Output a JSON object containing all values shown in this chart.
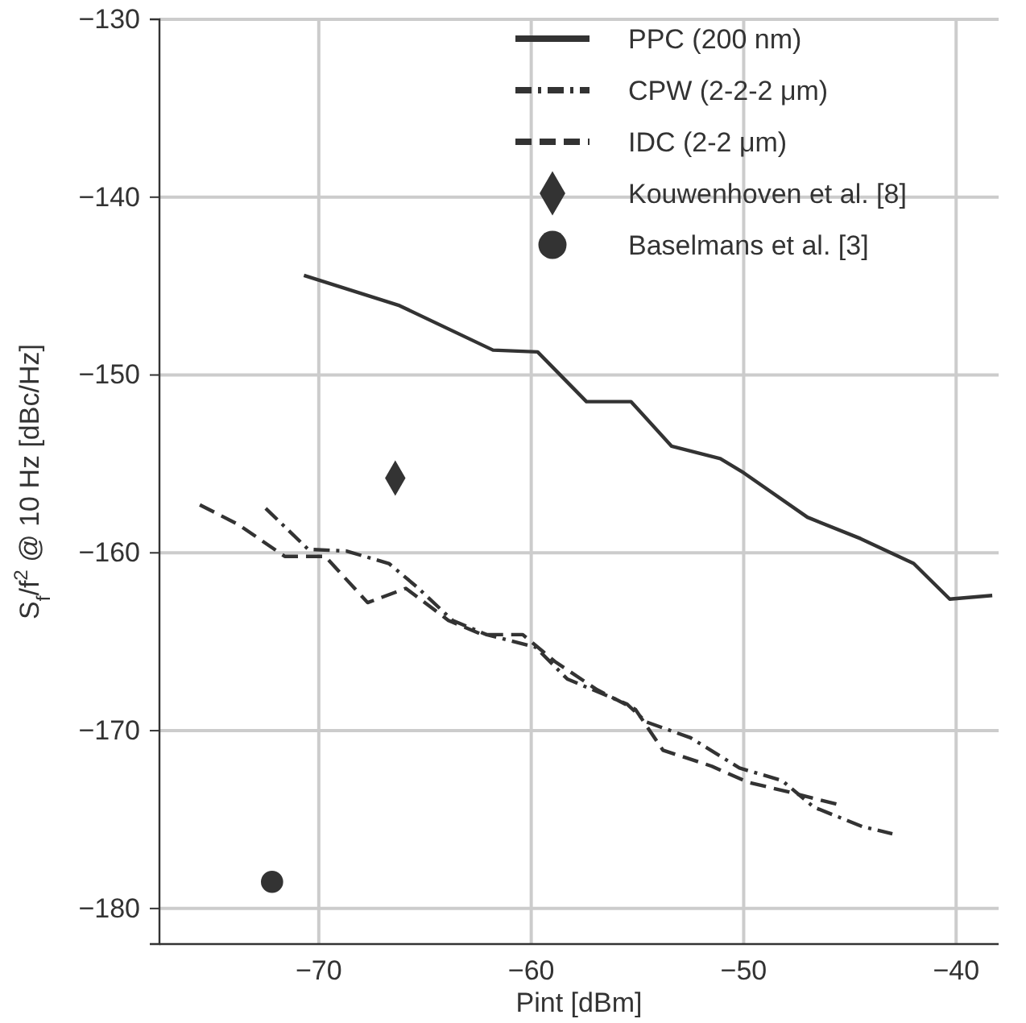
{
  "chart_data": {
    "type": "line",
    "xlabel": "Pint [dBm]",
    "ylabel": "S$_{f}$/f$^{2}$ @ 10 Hz [dBc/Hz]",
    "xlim": [
      -77.5,
      -38
    ],
    "ylim": [
      -182,
      -130
    ],
    "xticks": [
      -70,
      -60,
      -50,
      -40
    ],
    "yticks": [
      -180,
      -170,
      -160,
      -150,
      -140,
      -130
    ],
    "grid": true,
    "legend": "top right",
    "series": [
      {
        "name": "PPC (200 nm)",
        "color": "#333333",
        "line_style": "solid",
        "x": [
          -70.7,
          -66.2,
          -61.8,
          -59.7,
          -57.4,
          -55.3,
          -53.4,
          -51.1,
          -50,
          -47,
          -44.5,
          -42,
          -40.3,
          -38.3
        ],
        "values": [
          -144.4,
          -146.1,
          -148.6,
          -148.7,
          -151.5,
          -151.5,
          -154.0,
          -154.7,
          -155.5,
          -158,
          -159.2,
          -160.6,
          -162.6,
          -162.4
        ]
      },
      {
        "name": "CPW (2-2-2 μm)",
        "color": "#333333",
        "line_style": "dashdot",
        "x": [
          -72.5,
          -70.5,
          -68.7,
          -66.7,
          -65.4,
          -63.7,
          -62.1,
          -59.8,
          -58.3,
          -57.1,
          -55.5,
          -54.6,
          -52.5,
          -50.2,
          -48.2,
          -46.7,
          -44.4,
          -43.0
        ],
        "values": [
          -157.5,
          -159.8,
          -159.9,
          -160.6,
          -161.9,
          -163.8,
          -164.6,
          -165.3,
          -167.1,
          -167.7,
          -168.5,
          -169.5,
          -170.4,
          -172.1,
          -172.8,
          -174.3,
          -175.4,
          -175.8
        ]
      },
      {
        "name": "IDC (2-2 μm)",
        "color": "#333333",
        "line_style": "dashed",
        "x": [
          -75.6,
          -73.8,
          -71.6,
          -69.7,
          -67.7,
          -65.9,
          -63.9,
          -62.3,
          -60.4,
          -58.9,
          -56.9,
          -55.1,
          -53.8,
          -51.5,
          -49.8,
          -47.7,
          -45.4
        ],
        "values": [
          -157.3,
          -158.4,
          -160.2,
          -160.2,
          -162.8,
          -162.0,
          -163.8,
          -164.6,
          -164.6,
          -166.1,
          -167.7,
          -168.8,
          -171.1,
          -172.0,
          -172.9,
          -173.5,
          -174.2
        ]
      },
      {
        "name": "Kouwenhoven et al. [8]",
        "type": "scatter",
        "marker": "diamond",
        "color": "#333333",
        "x": [
          -66.4
        ],
        "values": [
          -155.8
        ]
      },
      {
        "name": "Baselmans et al. [3]",
        "type": "scatter",
        "marker": "circle",
        "color": "#333333",
        "x": [
          -72.2
        ],
        "values": [
          -178.5
        ]
      }
    ]
  }
}
